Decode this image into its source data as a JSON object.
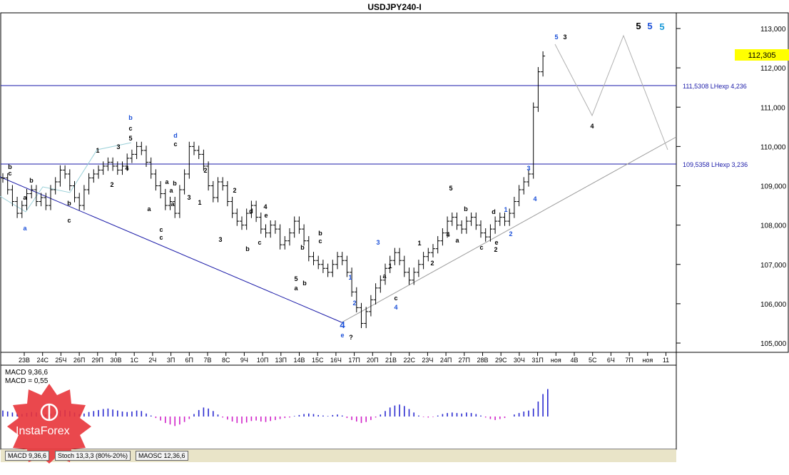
{
  "window": {
    "title": "USDJPY240-I"
  },
  "colors": {
    "price": "#000000",
    "levels": "#1a1aa8",
    "wave_blue": "#1a4fd8",
    "wave_cyan": "#1a9ad8",
    "macd_pos": "#2a2ad0",
    "macd_neg": "#d020c8",
    "channel": "#9a9a9a",
    "highlight": "#ffff00",
    "logo": "#e8343a"
  },
  "price_panel": {
    "ytick_labels": [
      "113,000",
      "112,000",
      "111,000",
      "110,000",
      "109,000",
      "108,000",
      "107,000",
      "106,000",
      "105,000"
    ],
    "current_price": "112,305",
    "level_labels": [
      "111,5308 LHexp 4,236",
      "109,5358 LHexp 3,236"
    ],
    "xtick_labels": [
      "23В",
      "24С",
      "25Ч",
      "26П",
      "29П",
      "30В",
      "1С",
      "2Ч",
      "3П",
      "6П",
      "7В",
      "8С",
      "9Ч",
      "10П",
      "13П",
      "14В",
      "15С",
      "16Ч",
      "17П",
      "20П",
      "21В",
      "22С",
      "23Ч",
      "24П",
      "27П",
      "28В",
      "29С",
      "30Ч",
      "31П",
      "ноя",
      "4В",
      "5С",
      "6Ч",
      "7П",
      "ноя",
      "11"
    ],
    "wave_labels": [
      "b",
      "c",
      "a",
      "b",
      "a",
      "b",
      "c",
      "1",
      "3",
      "4",
      "2",
      "b",
      "c",
      "5",
      "d",
      "c",
      "2",
      "1",
      "a",
      "a",
      "c",
      "c",
      "a",
      "4",
      "e",
      "d",
      "3",
      "b",
      "c",
      "5",
      "b",
      "a",
      "b",
      "c",
      "b",
      "a",
      "1",
      "2",
      "3",
      "a",
      "b",
      "c",
      "4",
      "1",
      "2",
      "3",
      "1",
      "5",
      "4",
      "2",
      "c",
      "e",
      "a",
      "b",
      "d",
      "1",
      "2",
      "2",
      "4",
      "3",
      "5",
      "3",
      "4",
      "5",
      "5",
      "5",
      "4",
      "e",
      "?"
    ]
  },
  "indicator_panel": {
    "macd_label": "MACD 9,36,6",
    "macd_value": "MACD = 0,55",
    "tabs": [
      "MACD 9,36,6",
      "Stoch 13,3,3 (80%-20%)",
      "MAOSC 12,36,6"
    ]
  },
  "logo": {
    "text": "InstaForex"
  },
  "chart_data": [
    {
      "type": "candlestick",
      "title": "USDJPY240-I",
      "ylim": [
        104.85,
        113.25
      ],
      "horizontal_levels": [
        {
          "label": "111,5308 LHexp 4,236",
          "value": 111.5308
        },
        {
          "label": "109,5358 LHexp 3,236",
          "value": 109.5358
        }
      ],
      "last_price": 112.305,
      "closes": [
        109.2,
        108.9,
        108.6,
        108.3,
        108.5,
        108.8,
        108.9,
        108.6,
        108.7,
        108.5,
        108.9,
        109.1,
        109.4,
        109.3,
        109.0,
        108.7,
        108.5,
        108.9,
        109.2,
        109.3,
        109.4,
        109.5,
        109.6,
        109.5,
        109.4,
        109.5,
        109.7,
        109.8,
        110.0,
        109.9,
        109.6,
        109.3,
        109.0,
        108.8,
        108.5,
        108.6,
        108.3,
        108.9,
        109.3,
        110.0,
        109.9,
        109.8,
        109.5,
        109.0,
        108.7,
        109.1,
        109.0,
        108.6,
        108.3,
        108.1,
        108.0,
        108.3,
        108.5,
        108.2,
        107.9,
        107.8,
        108.0,
        107.9,
        107.5,
        107.6,
        107.8,
        108.1,
        107.9,
        107.6,
        107.2,
        107.1,
        107.0,
        106.9,
        106.8,
        107.0,
        107.2,
        107.1,
        106.8,
        106.3,
        105.9,
        105.5,
        105.8,
        106.1,
        106.4,
        106.6,
        106.9,
        107.1,
        107.3,
        107.1,
        106.8,
        106.6,
        106.8,
        107.0,
        107.2,
        107.3,
        107.4,
        107.6,
        107.8,
        108.1,
        108.2,
        108.0,
        107.9,
        108.1,
        108.2,
        108.0,
        107.8,
        107.7,
        107.9,
        108.1,
        108.2,
        108.1,
        108.3,
        108.6,
        108.9,
        109.1,
        109.3,
        111.0,
        111.9,
        112.3
      ],
      "macd": [
        0.12,
        0.1,
        0.08,
        0.06,
        0.05,
        0.07,
        0.09,
        0.08,
        0.05,
        0.04,
        0.06,
        0.09,
        0.12,
        0.13,
        0.11,
        0.08,
        0.05,
        0.06,
        0.09,
        0.11,
        0.13,
        0.15,
        0.16,
        0.14,
        0.12,
        0.1,
        0.09,
        0.1,
        0.12,
        0.11,
        0.06,
        0.02,
        -0.03,
        -0.08,
        -0.13,
        -0.16,
        -0.19,
        -0.16,
        -0.11,
        -0.05,
        0.05,
        0.13,
        0.18,
        0.16,
        0.11,
        0.04,
        -0.02,
        -0.06,
        -0.1,
        -0.13,
        -0.14,
        -0.12,
        -0.09,
        -0.08,
        -0.1,
        -0.11,
        -0.09,
        -0.07,
        -0.05,
        -0.03,
        -0.02,
        0.01,
        0.03,
        0.05,
        0.06,
        0.05,
        0.03,
        0.02,
        0.01,
        0.03,
        0.04,
        0.02,
        -0.03,
        -0.07,
        -0.1,
        -0.13,
        -0.11,
        -0.07,
        -0.02,
        0.04,
        0.11,
        0.18,
        0.22,
        0.24,
        0.21,
        0.15,
        0.08,
        0.02,
        -0.01,
        -0.02,
        -0.01,
        0.02,
        0.05,
        0.07,
        0.08,
        0.07,
        0.06,
        0.08,
        0.07,
        0.05,
        0.02,
        -0.02,
        -0.05,
        -0.07,
        -0.05,
        -0.03,
        0.0,
        0.04,
        0.07,
        0.1,
        0.12,
        0.16,
        0.3,
        0.45,
        0.55
      ]
    },
    {
      "type": "bar",
      "title": "MACD 9,36,6",
      "last_value": 0.55
    }
  ]
}
